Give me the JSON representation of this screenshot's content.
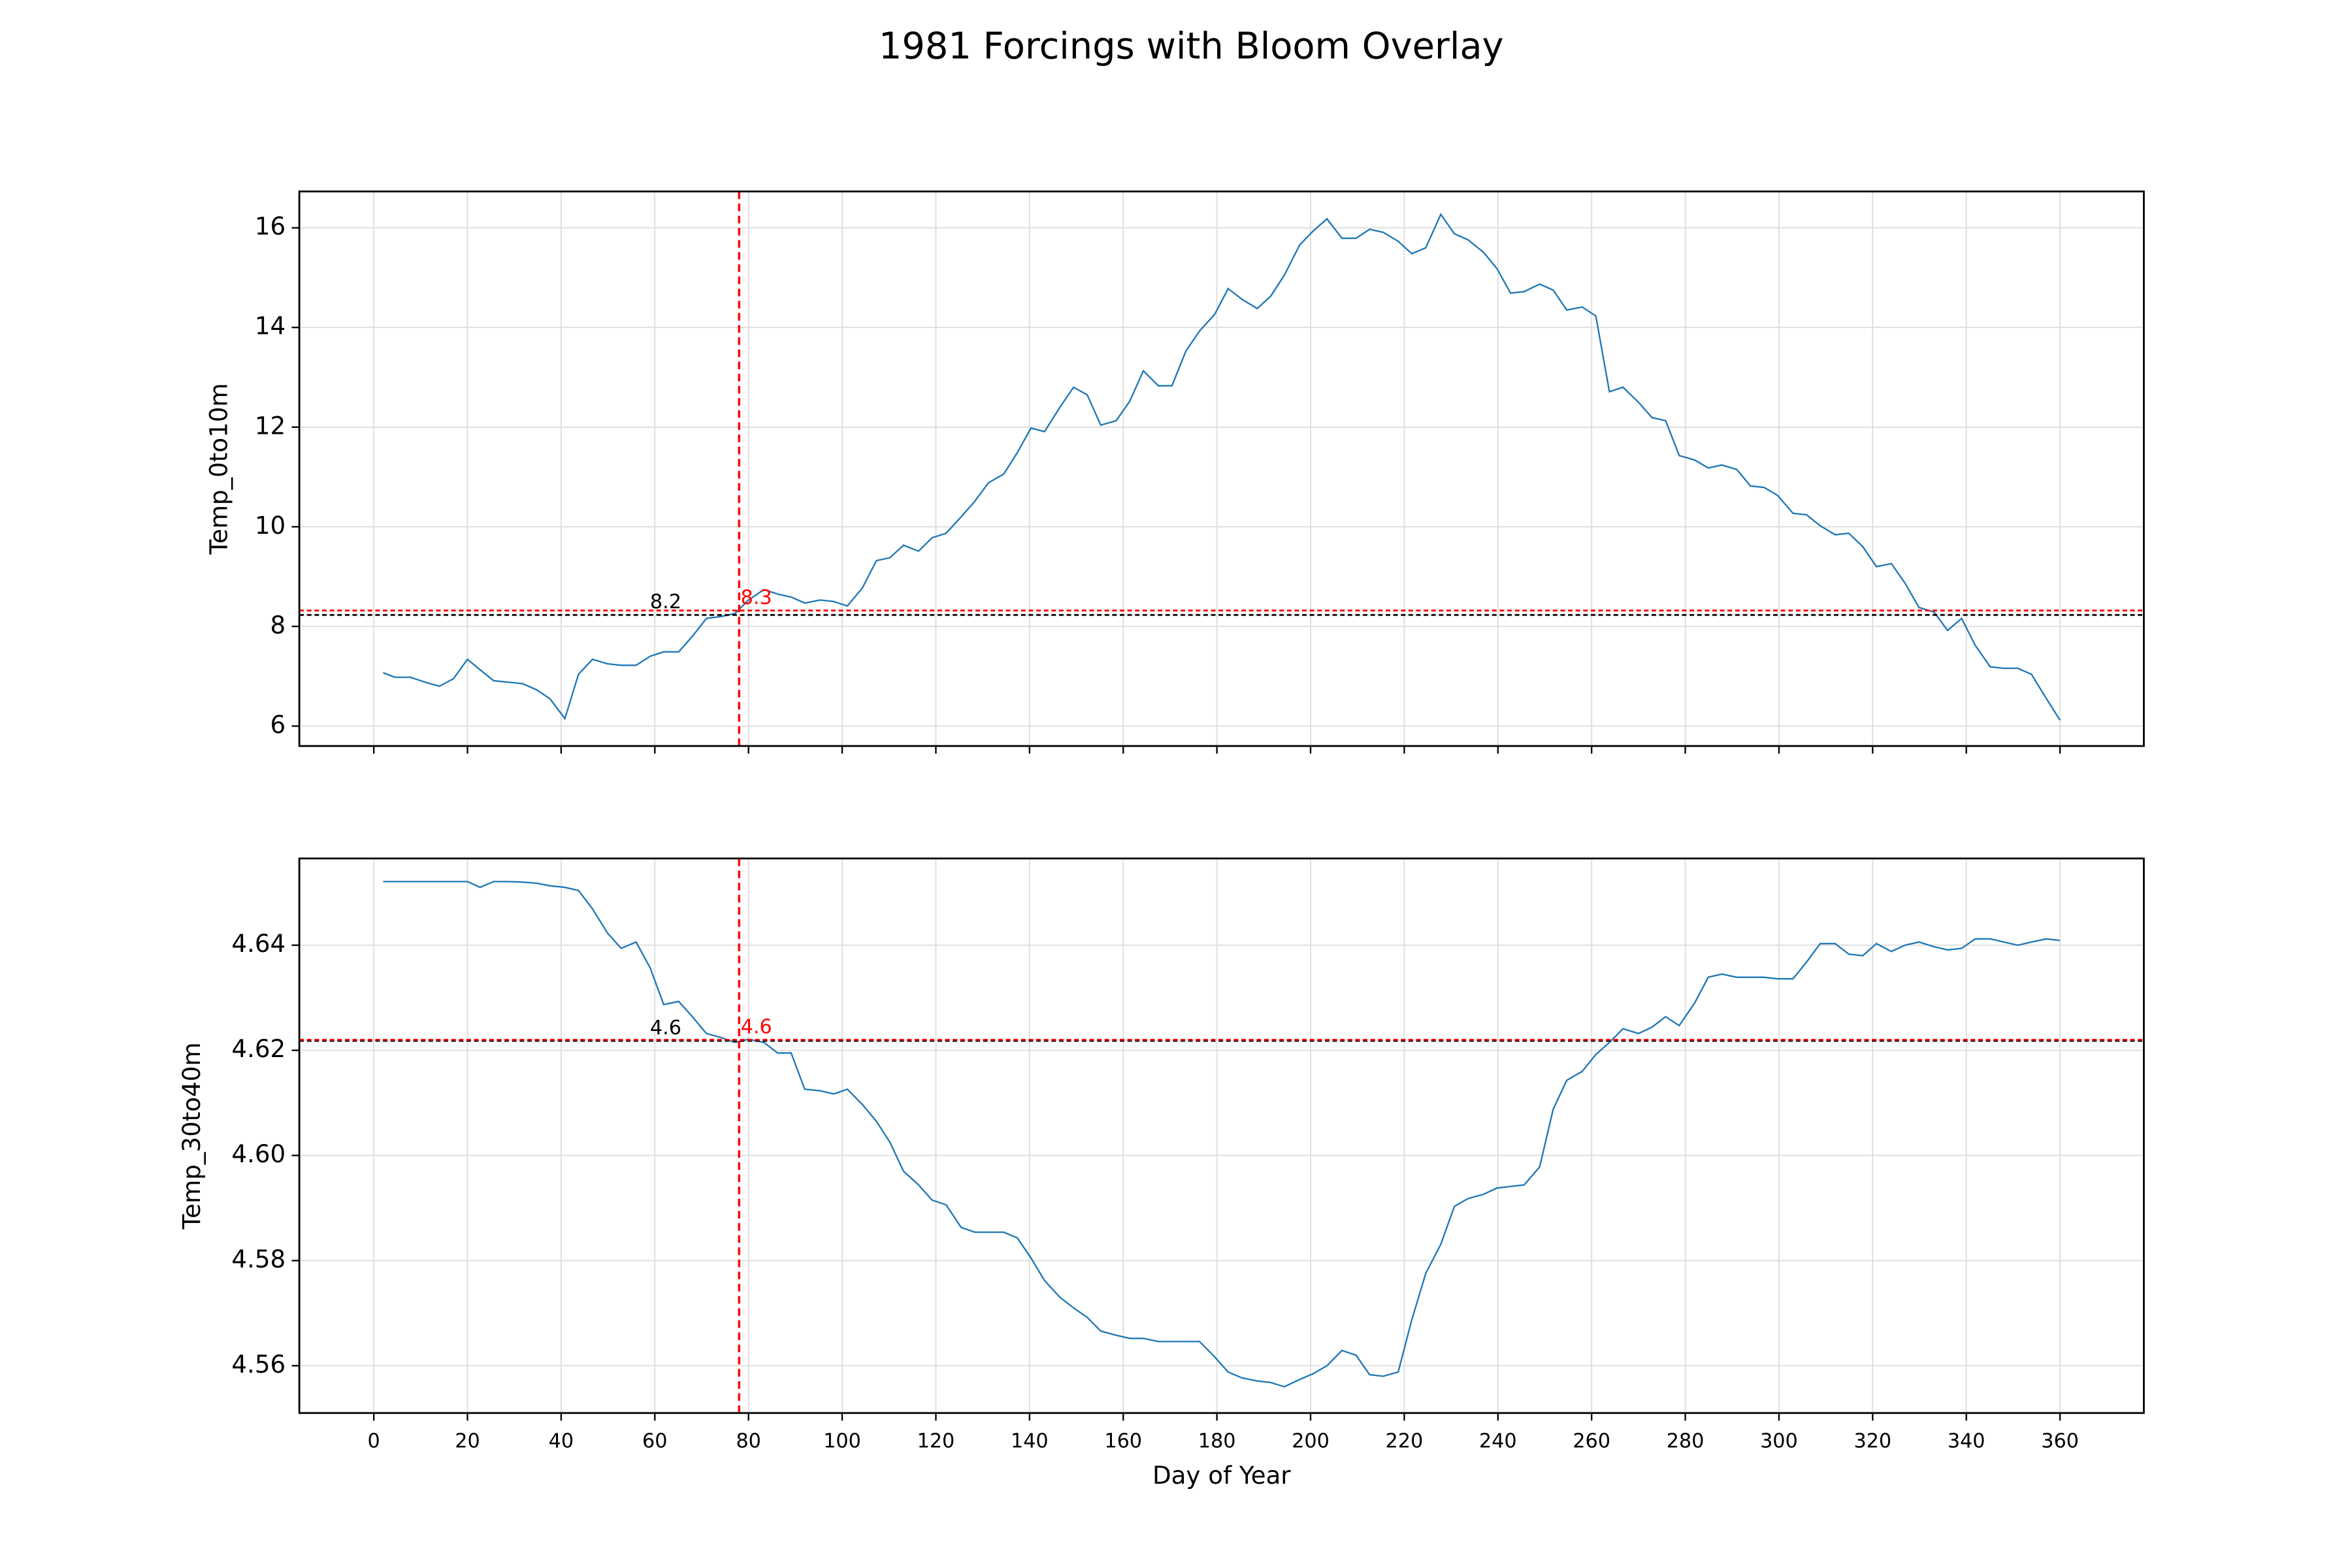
{
  "title": "1981 Forcings with Bloom Overlay",
  "chart_data": [
    {
      "type": "line",
      "ylabel": "Temp_0to10m",
      "xlim": [
        -15.9,
        377.9
      ],
      "ylim": [
        5.6,
        16.73
      ],
      "xticks": [
        0,
        20,
        40,
        60,
        80,
        100,
        120,
        140,
        160,
        180,
        200,
        220,
        240,
        260,
        280,
        300,
        320,
        340,
        360
      ],
      "xtick_labels": false,
      "yticks": [
        6,
        8,
        10,
        12,
        14,
        16
      ],
      "grid": true,
      "x": [
        2,
        4.5,
        7.8,
        11,
        14,
        17,
        20,
        22.7,
        25.6,
        28.8,
        31.8,
        34.7,
        37.6,
        40.8,
        43.7,
        46.7,
        49.9,
        52.8,
        56,
        59,
        61.9,
        65.1,
        68,
        71,
        74.2,
        77.1,
        80,
        83.3,
        86.2,
        89.1,
        92,
        95.3,
        98.2,
        101.1,
        104.3,
        107.3,
        110.2,
        113.1,
        116.3,
        119.2,
        122.2,
        125.4,
        128.3,
        131.2,
        134.5,
        137.4,
        140.3,
        143.2,
        146.5,
        149.4,
        152.3,
        155.2,
        158.5,
        161.4,
        164.3,
        167.5,
        170.4,
        173.4,
        176.3,
        179.5,
        182.4,
        185.3,
        188.6,
        191.5,
        194.4,
        197.7,
        200.6,
        203.5,
        206.7,
        209.7,
        212.6,
        215.5,
        218.7,
        221.6,
        224.6,
        227.8,
        230.7,
        233.6,
        236.9,
        239.8,
        242.7,
        245.6,
        248.9,
        251.8,
        254.7,
        258,
        260.9,
        263.8,
        266.7,
        270,
        272.9,
        275.8,
        278.7,
        282,
        284.9,
        287.8,
        291,
        293.9,
        296.8,
        299.7,
        303,
        305.9,
        308.8,
        312,
        314.9,
        317.9,
        320.8,
        324,
        326.9,
        329.9,
        333.1,
        336,
        339,
        341.9,
        345.1,
        348,
        351,
        353.9,
        357.1,
        360
      ],
      "series": [
        {
          "color": "#1f77b4",
          "values": [
            7.07,
            6.98,
            6.98,
            6.88,
            6.8,
            6.95,
            7.34,
            7.13,
            6.91,
            6.88,
            6.85,
            6.73,
            6.55,
            6.15,
            7.04,
            7.34,
            7.25,
            7.22,
            7.22,
            7.4,
            7.49,
            7.49,
            7.8,
            8.16,
            8.2,
            8.26,
            8.53,
            8.74,
            8.65,
            8.59,
            8.47,
            8.53,
            8.5,
            8.41,
            8.77,
            9.32,
            9.38,
            9.63,
            9.51,
            9.78,
            9.87,
            10.2,
            10.51,
            10.88,
            11.06,
            11.49,
            11.98,
            11.91,
            12.4,
            12.8,
            12.65,
            12.04,
            12.13,
            12.52,
            13.13,
            12.83,
            12.83,
            13.53,
            13.93,
            14.26,
            14.78,
            14.57,
            14.38,
            14.63,
            15.05,
            15.66,
            15.94,
            16.18,
            15.79,
            15.79,
            15.97,
            15.91,
            15.73,
            15.48,
            15.6,
            16.27,
            15.88,
            15.76,
            15.51,
            15.18,
            14.69,
            14.72,
            14.87,
            14.75,
            14.35,
            14.41,
            14.23,
            12.71,
            12.8,
            12.5,
            12.19,
            12.13,
            11.43,
            11.34,
            11.18,
            11.24,
            11.15,
            10.82,
            10.79,
            10.63,
            10.27,
            10.24,
            10.02,
            9.84,
            9.87,
            9.6,
            9.2,
            9.26,
            8.87,
            8.38,
            8.29,
            7.92,
            8.16,
            7.62,
            7.19,
            7.16,
            7.16,
            7.04,
            6.55,
            6.12
          ]
        }
      ],
      "vline": {
        "value": 78,
        "color": "#ff0000"
      },
      "hlines": [
        {
          "value": 8.23,
          "label": "8.2",
          "color": "#000000"
        },
        {
          "value": 8.32,
          "label": "8.3",
          "color": "#ff0000"
        }
      ]
    },
    {
      "type": "line",
      "ylabel": "Temp_30to40m",
      "xlabel": "Day of Year",
      "xlim": [
        -15.9,
        377.9
      ],
      "ylim": [
        4.551,
        4.6565
      ],
      "xticks": [
        0,
        20,
        40,
        60,
        80,
        100,
        120,
        140,
        160,
        180,
        200,
        220,
        240,
        260,
        280,
        300,
        320,
        340,
        360
      ],
      "xtick_labels": true,
      "yticks": [
        4.56,
        4.58,
        {
          "value": 4.6,
          "label": "4.60"
        },
        4.62,
        4.64
      ],
      "grid": true,
      "x": [
        2,
        4.5,
        7.8,
        11,
        14,
        17,
        20,
        22.7,
        25.6,
        28.8,
        31.8,
        34.7,
        37.6,
        40.8,
        43.7,
        46.7,
        49.9,
        52.8,
        56,
        59,
        61.9,
        65.1,
        68,
        71,
        74.2,
        77.1,
        80,
        83.3,
        86.2,
        89.1,
        92,
        95.3,
        98.2,
        101.1,
        104.3,
        107.3,
        110.2,
        113.1,
        116.3,
        119.2,
        122.2,
        125.4,
        128.3,
        131.2,
        134.5,
        137.4,
        140.3,
        143.2,
        146.5,
        149.4,
        152.3,
        155.2,
        158.5,
        161.4,
        164.3,
        167.5,
        170.4,
        173.4,
        176.3,
        179.5,
        182.4,
        185.3,
        188.6,
        191.5,
        194.4,
        197.7,
        200.6,
        203.5,
        206.7,
        209.7,
        212.6,
        215.5,
        218.7,
        221.6,
        224.6,
        227.8,
        230.7,
        233.6,
        236.9,
        239.8,
        242.7,
        245.6,
        248.9,
        251.8,
        254.7,
        258,
        260.9,
        263.8,
        266.7,
        270,
        272.9,
        275.8,
        278.7,
        282,
        284.9,
        287.8,
        291,
        293.9,
        296.8,
        299.7,
        303,
        305.9,
        308.8,
        312,
        314.9,
        317.9,
        320.8,
        324,
        326.9,
        329.9,
        333.1,
        336,
        339,
        341.9,
        345.1,
        348,
        351,
        353.9,
        357.1,
        360
      ],
      "series": [
        {
          "color": "#1f77b4",
          "values": [
            4.6521,
            4.6521,
            4.6521,
            4.6521,
            4.6521,
            4.6521,
            4.6521,
            4.651,
            4.6521,
            4.6521,
            4.652,
            4.6518,
            4.6513,
            4.651,
            4.6504,
            4.6469,
            4.6423,
            4.6394,
            4.6406,
            4.6357,
            4.6287,
            4.6293,
            4.6264,
            4.6232,
            4.6224,
            4.6215,
            4.6221,
            4.6215,
            4.6195,
            4.6195,
            4.6126,
            4.6123,
            4.6117,
            4.6126,
            4.6097,
            4.6065,
            4.6025,
            4.597,
            4.5944,
            4.5915,
            4.5906,
            4.5863,
            4.5854,
            4.5854,
            4.5854,
            4.5843,
            4.5805,
            4.5762,
            4.573,
            4.571,
            4.5692,
            4.5666,
            4.5658,
            4.5652,
            4.5652,
            4.5646,
            4.5646,
            4.5646,
            4.5646,
            4.5617,
            4.5588,
            4.5577,
            4.5571,
            4.5568,
            4.556,
            4.5574,
            4.5585,
            4.56,
            4.5629,
            4.562,
            4.5583,
            4.558,
            4.5588,
            4.5687,
            4.5776,
            4.5831,
            4.5903,
            4.5918,
            4.5926,
            4.5938,
            4.5941,
            4.5944,
            4.5978,
            4.6088,
            4.6143,
            4.616,
            4.6192,
            4.6215,
            4.6241,
            4.6232,
            4.6244,
            4.6264,
            4.6247,
            4.629,
            4.6339,
            4.6345,
            4.6339,
            4.6339,
            4.6339,
            4.6336,
            4.6336,
            4.6368,
            4.6403,
            4.6403,
            4.6383,
            4.638,
            4.6403,
            4.6388,
            4.64,
            4.6406,
            4.6397,
            4.6391,
            4.6394,
            4.6412,
            4.6412,
            4.6406,
            4.64,
            4.6406,
            4.6412,
            4.6409
          ]
        }
      ],
      "vline": {
        "value": 78,
        "color": "#ff0000"
      },
      "hlines": [
        {
          "value": 4.6218,
          "label": "4.6",
          "color": "#000000"
        },
        {
          "value": 4.622,
          "label": "4.6",
          "color": "#ff0000"
        }
      ]
    }
  ]
}
